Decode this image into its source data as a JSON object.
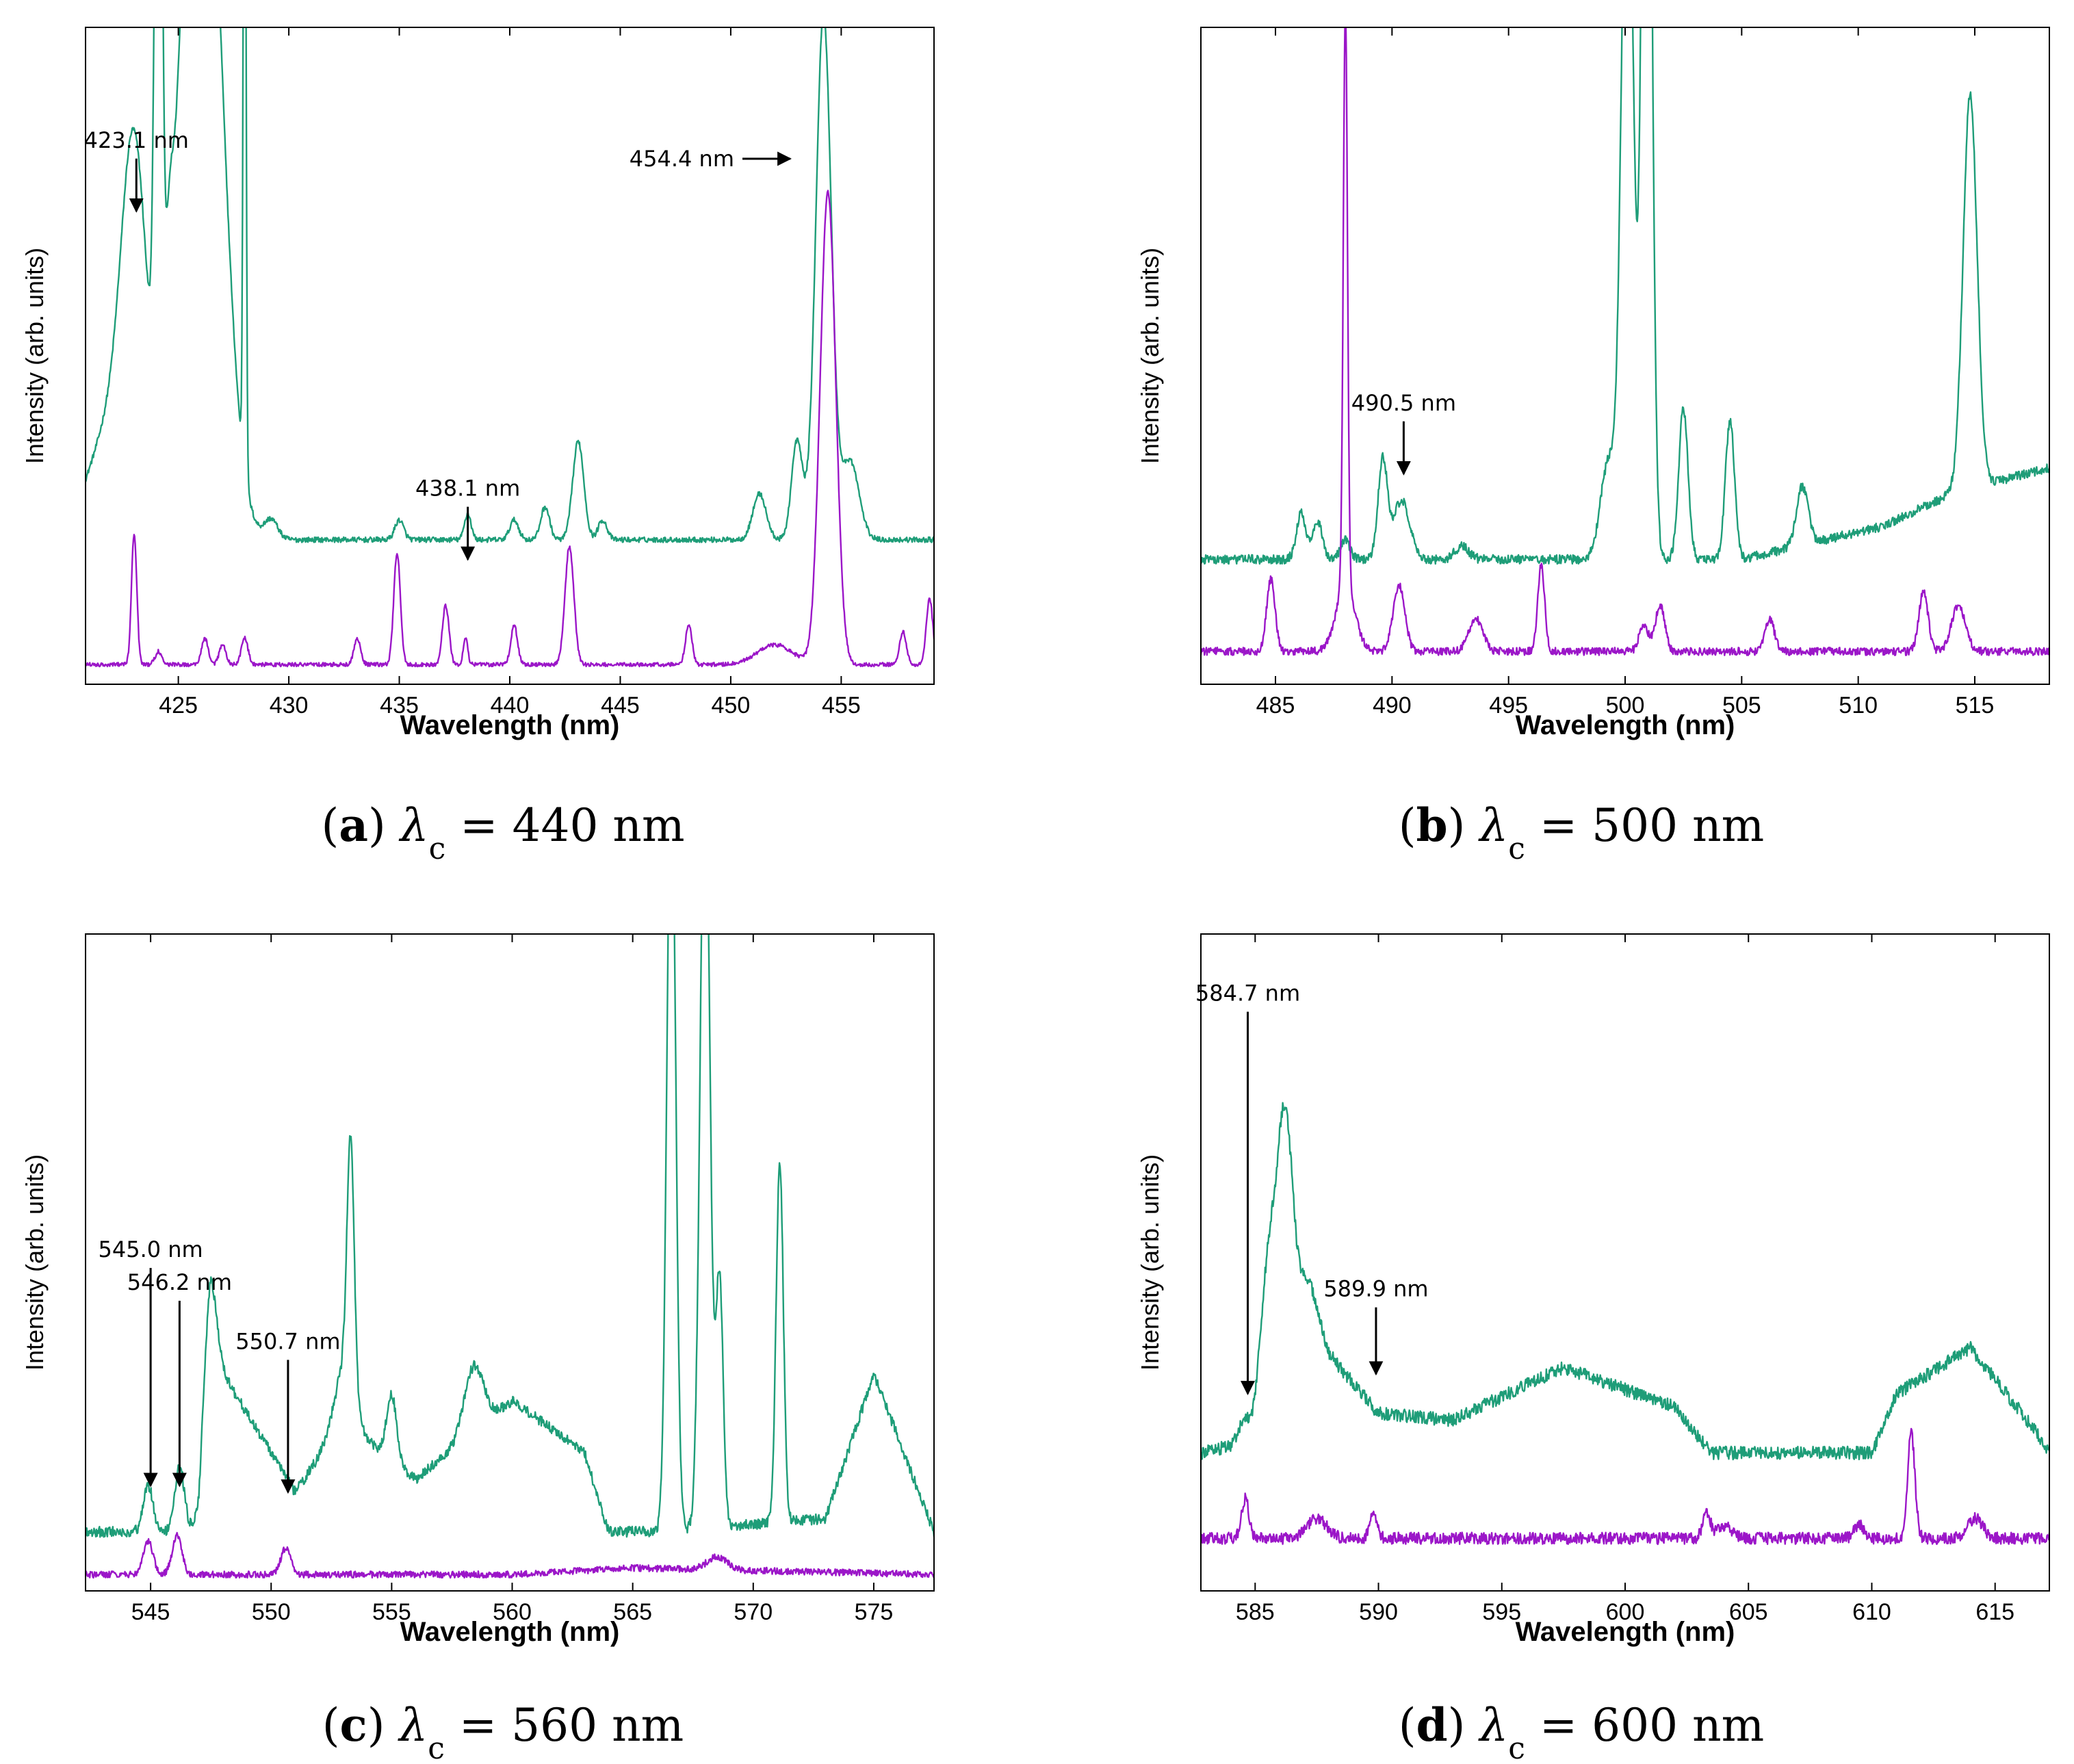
{
  "colors": {
    "green": "#1e9d78",
    "purple": "#9b16c8",
    "axis": "#000000"
  },
  "chart_data": [
    {
      "type": "line",
      "panel": "a",
      "caption": {
        "label": "a",
        "symbol": "λ",
        "sub": "c",
        "rest": " = 440 nm"
      },
      "xlabel": "Wavelength (nm)",
      "ylabel": "Intensity (arb. units)",
      "xlim": [
        420.8,
        459.2
      ],
      "ylim": [
        0,
        1
      ],
      "xticks": [
        425,
        430,
        435,
        440,
        445,
        450,
        455
      ],
      "baselines": [
        0.22,
        0.03
      ],
      "noise": [
        0.004,
        0.003
      ],
      "ramp": [
        [
          420.8,
          0.0
        ],
        [
          459.2,
          0.0
        ]
      ],
      "ramp2": [
        [
          420.8,
          0.0
        ],
        [
          459.2,
          0.0
        ]
      ],
      "series": [
        {
          "name": "green",
          "color": "#1e9d78",
          "peaks": [
            [
              423.0,
              0.45,
              0.55
            ],
            [
              422.3,
              0.2,
              1.2
            ],
            [
              424.1,
              1.3,
              0.15
            ],
            [
              424.6,
              0.12,
              0.15
            ],
            [
              426.0,
              1.3,
              0.9
            ],
            [
              428.0,
              1.3,
              0.06
            ],
            [
              429.2,
              0.03,
              0.3
            ],
            [
              435.0,
              0.03,
              0.2
            ],
            [
              438.1,
              0.04,
              0.15
            ],
            [
              440.2,
              0.03,
              0.2
            ],
            [
              441.6,
              0.05,
              0.2
            ],
            [
              443.1,
              0.15,
              0.25
            ],
            [
              444.2,
              0.03,
              0.2
            ],
            [
              451.3,
              0.07,
              0.3
            ],
            [
              453.0,
              0.15,
              0.25
            ],
            [
              454.2,
              0.8,
              0.35
            ],
            [
              455.4,
              0.12,
              0.4
            ]
          ]
        },
        {
          "name": "purple",
          "color": "#9b16c8",
          "peaks": [
            [
              423.0,
              0.2,
              0.12
            ],
            [
              424.1,
              0.02,
              0.15
            ],
            [
              426.2,
              0.04,
              0.15
            ],
            [
              427.0,
              0.03,
              0.15
            ],
            [
              428.0,
              0.04,
              0.15
            ],
            [
              433.1,
              0.04,
              0.15
            ],
            [
              434.9,
              0.17,
              0.15
            ],
            [
              437.1,
              0.09,
              0.15
            ],
            [
              438.0,
              0.04,
              0.1
            ],
            [
              440.2,
              0.06,
              0.15
            ],
            [
              442.7,
              0.18,
              0.2
            ],
            [
              448.1,
              0.06,
              0.15
            ],
            [
              452.0,
              0.03,
              0.8
            ],
            [
              454.4,
              0.72,
              0.35
            ],
            [
              457.8,
              0.05,
              0.15
            ],
            [
              459.0,
              0.1,
              0.15
            ]
          ]
        }
      ],
      "annotations": [
        {
          "text": "423.1 nm",
          "x": 423.1,
          "y": 0.72,
          "dir": "down"
        },
        {
          "text": "438.1 nm",
          "x": 438.1,
          "y": 0.19,
          "dir": "down"
        },
        {
          "text": "454.4 nm",
          "x": 454.4,
          "y": 0.8,
          "dir": "right"
        }
      ]
    },
    {
      "type": "line",
      "panel": "b",
      "caption": {
        "label": "b",
        "symbol": "λ",
        "sub": "c",
        "rest": " = 500 nm"
      },
      "xlabel": "Wavelength (nm)",
      "ylabel": "Intensity (arb. units)",
      "xlim": [
        481.8,
        518.2
      ],
      "ylim": [
        0,
        1
      ],
      "xticks": [
        485,
        490,
        495,
        500,
        505,
        510,
        515
      ],
      "baselines": [
        0.19,
        0.05
      ],
      "noise": [
        0.007,
        0.006
      ],
      "ramp": [
        [
          481.8,
          0.0
        ],
        [
          505.0,
          0.0
        ],
        [
          511.0,
          0.05
        ],
        [
          514.0,
          0.1
        ],
        [
          518.2,
          0.14
        ]
      ],
      "ramp2": [
        [
          481.8,
          0.0
        ],
        [
          518.2,
          0.0
        ]
      ],
      "series": [
        {
          "name": "green",
          "color": "#1e9d78",
          "peaks": [
            [
              486.1,
              0.07,
              0.2
            ],
            [
              486.8,
              0.06,
              0.2
            ],
            [
              488.0,
              0.03,
              0.2
            ],
            [
              489.6,
              0.15,
              0.2
            ],
            [
              490.4,
              0.09,
              0.35
            ],
            [
              493.0,
              0.02,
              0.3
            ],
            [
              499.3,
              0.15,
              0.35
            ],
            [
              500.1,
              1.2,
              0.25
            ],
            [
              500.9,
              1.2,
              0.2
            ],
            [
              501.0,
              0.5,
              0.2
            ],
            [
              502.5,
              0.23,
              0.2
            ],
            [
              504.5,
              0.21,
              0.2
            ],
            [
              507.6,
              0.09,
              0.25
            ],
            [
              514.8,
              0.6,
              0.3
            ]
          ]
        },
        {
          "name": "purple",
          "color": "#9b16c8",
          "peaks": [
            [
              484.8,
              0.11,
              0.18
            ],
            [
              488.0,
              0.88,
              0.09
            ],
            [
              488.0,
              0.1,
              0.4
            ],
            [
              490.3,
              0.1,
              0.25
            ],
            [
              493.6,
              0.05,
              0.3
            ],
            [
              496.4,
              0.13,
              0.15
            ],
            [
              500.8,
              0.04,
              0.2
            ],
            [
              501.5,
              0.07,
              0.2
            ],
            [
              506.2,
              0.05,
              0.2
            ],
            [
              512.8,
              0.09,
              0.2
            ],
            [
              514.3,
              0.07,
              0.3
            ]
          ]
        }
      ],
      "annotations": [
        {
          "text": "490.5 nm",
          "x": 490.5,
          "y": 0.32,
          "dir": "down"
        }
      ]
    },
    {
      "type": "line",
      "panel": "c",
      "caption": {
        "label": "c",
        "symbol": "λ",
        "sub": "c",
        "rest": " = 560 nm"
      },
      "xlabel": "Wavelength (nm)",
      "ylabel": "Intensity (arb. units)",
      "xlim": [
        542.3,
        577.5
      ],
      "ylim": [
        0,
        1
      ],
      "xticks": [
        545,
        550,
        555,
        560,
        565,
        570,
        575
      ],
      "baselines": [
        0.09,
        0.025
      ],
      "noise": [
        0.008,
        0.005
      ],
      "ramp": [
        [
          542.3,
          0.0
        ],
        [
          547.0,
          0.0
        ],
        [
          547.5,
          0.27
        ],
        [
          549.0,
          0.18
        ],
        [
          551.0,
          0.06
        ],
        [
          553.0,
          0.17
        ],
        [
          556.0,
          0.08
        ],
        [
          558.0,
          0.14
        ],
        [
          560.0,
          0.2
        ],
        [
          563.0,
          0.12
        ],
        [
          564.0,
          0.0
        ],
        [
          566.0,
          0.0
        ],
        [
          573.0,
          0.02
        ],
        [
          575.0,
          0.24
        ],
        [
          577.5,
          0.0
        ]
      ],
      "ramp2": [
        [
          542.3,
          0.0
        ],
        [
          560.0,
          0.0
        ],
        [
          565.0,
          0.01
        ],
        [
          577.5,
          0.0
        ]
      ],
      "series": [
        {
          "name": "green",
          "color": "#1e9d78",
          "peaks": [
            [
              544.9,
              0.07,
              0.2
            ],
            [
              546.2,
              0.1,
              0.2
            ],
            [
              547.4,
              0.13,
              0.3
            ],
            [
              553.3,
              0.38,
              0.15
            ],
            [
              553.0,
              0.08,
              0.4
            ],
            [
              555.0,
              0.1,
              0.2
            ],
            [
              558.4,
              0.1,
              0.4
            ],
            [
              566.6,
              1.2,
              0.18
            ],
            [
              568.0,
              1.2,
              0.2
            ],
            [
              568.6,
              0.38,
              0.15
            ],
            [
              571.1,
              0.55,
              0.15
            ]
          ]
        },
        {
          "name": "purple",
          "color": "#9b16c8",
          "peaks": [
            [
              544.9,
              0.05,
              0.2
            ],
            [
              546.1,
              0.06,
              0.2
            ],
            [
              550.6,
              0.04,
              0.2
            ],
            [
              568.5,
              0.02,
              0.4
            ]
          ]
        }
      ],
      "annotations": [
        {
          "text": "545.0 nm",
          "x": 545.0,
          "y": 0.16,
          "dir": "down",
          "label_y": 0.5
        },
        {
          "text": "546.2 nm",
          "x": 546.2,
          "y": 0.16,
          "dir": "down",
          "label_y": 0.45
        },
        {
          "text": "550.7 nm",
          "x": 550.7,
          "y": 0.15,
          "dir": "down",
          "label_y": 0.36
        }
      ]
    },
    {
      "type": "line",
      "panel": "d",
      "caption": {
        "label": "d",
        "symbol": "λ",
        "sub": "c",
        "rest": " = 600 nm"
      },
      "xlabel": "Wavelength (nm)",
      "ylabel": "Intensity (arb. units)",
      "xlim": [
        582.8,
        617.2
      ],
      "ylim": [
        0,
        1
      ],
      "xticks": [
        585,
        590,
        595,
        600,
        605,
        610,
        615
      ],
      "baselines": [
        0.21,
        0.08
      ],
      "noise": [
        0.01,
        0.009
      ],
      "ramp": [
        [
          582.8,
          0.0
        ],
        [
          585.0,
          0.02
        ],
        [
          586.5,
          0.3
        ],
        [
          588.0,
          0.15
        ],
        [
          590.0,
          0.06
        ],
        [
          593.0,
          0.05
        ],
        [
          597.5,
          0.13
        ],
        [
          602.0,
          0.07
        ],
        [
          603.5,
          0.0
        ],
        [
          610.0,
          0.0
        ],
        [
          611.0,
          0.09
        ],
        [
          614.0,
          0.16
        ],
        [
          616.5,
          0.04
        ],
        [
          617.2,
          0.0
        ]
      ],
      "ramp2": [
        [
          582.8,
          0.0
        ],
        [
          617.2,
          0.0
        ]
      ],
      "series": [
        {
          "name": "green",
          "color": "#1e9d78",
          "peaks": [
            [
              584.5,
              0.03,
              0.2
            ],
            [
              585.6,
              0.2,
              0.4
            ],
            [
              586.2,
              0.22,
              0.25
            ],
            [
              587.3,
              0.03,
              0.3
            ]
          ]
        },
        {
          "name": "purple",
          "color": "#9b16c8",
          "peaks": [
            [
              584.6,
              0.06,
              0.15
            ],
            [
              587.5,
              0.03,
              0.4
            ],
            [
              589.8,
              0.04,
              0.15
            ],
            [
              603.3,
              0.04,
              0.15
            ],
            [
              604.0,
              0.02,
              0.3
            ],
            [
              609.5,
              0.02,
              0.2
            ],
            [
              611.6,
              0.16,
              0.15
            ],
            [
              614.2,
              0.03,
              0.3
            ]
          ]
        }
      ],
      "annotations": [
        {
          "text": "584.7 nm",
          "x": 584.7,
          "y": 0.3,
          "dir": "down",
          "label_y": 0.89
        },
        {
          "text": "589.9 nm",
          "x": 589.9,
          "y": 0.33,
          "dir": "down",
          "label_y": 0.44
        }
      ]
    }
  ]
}
